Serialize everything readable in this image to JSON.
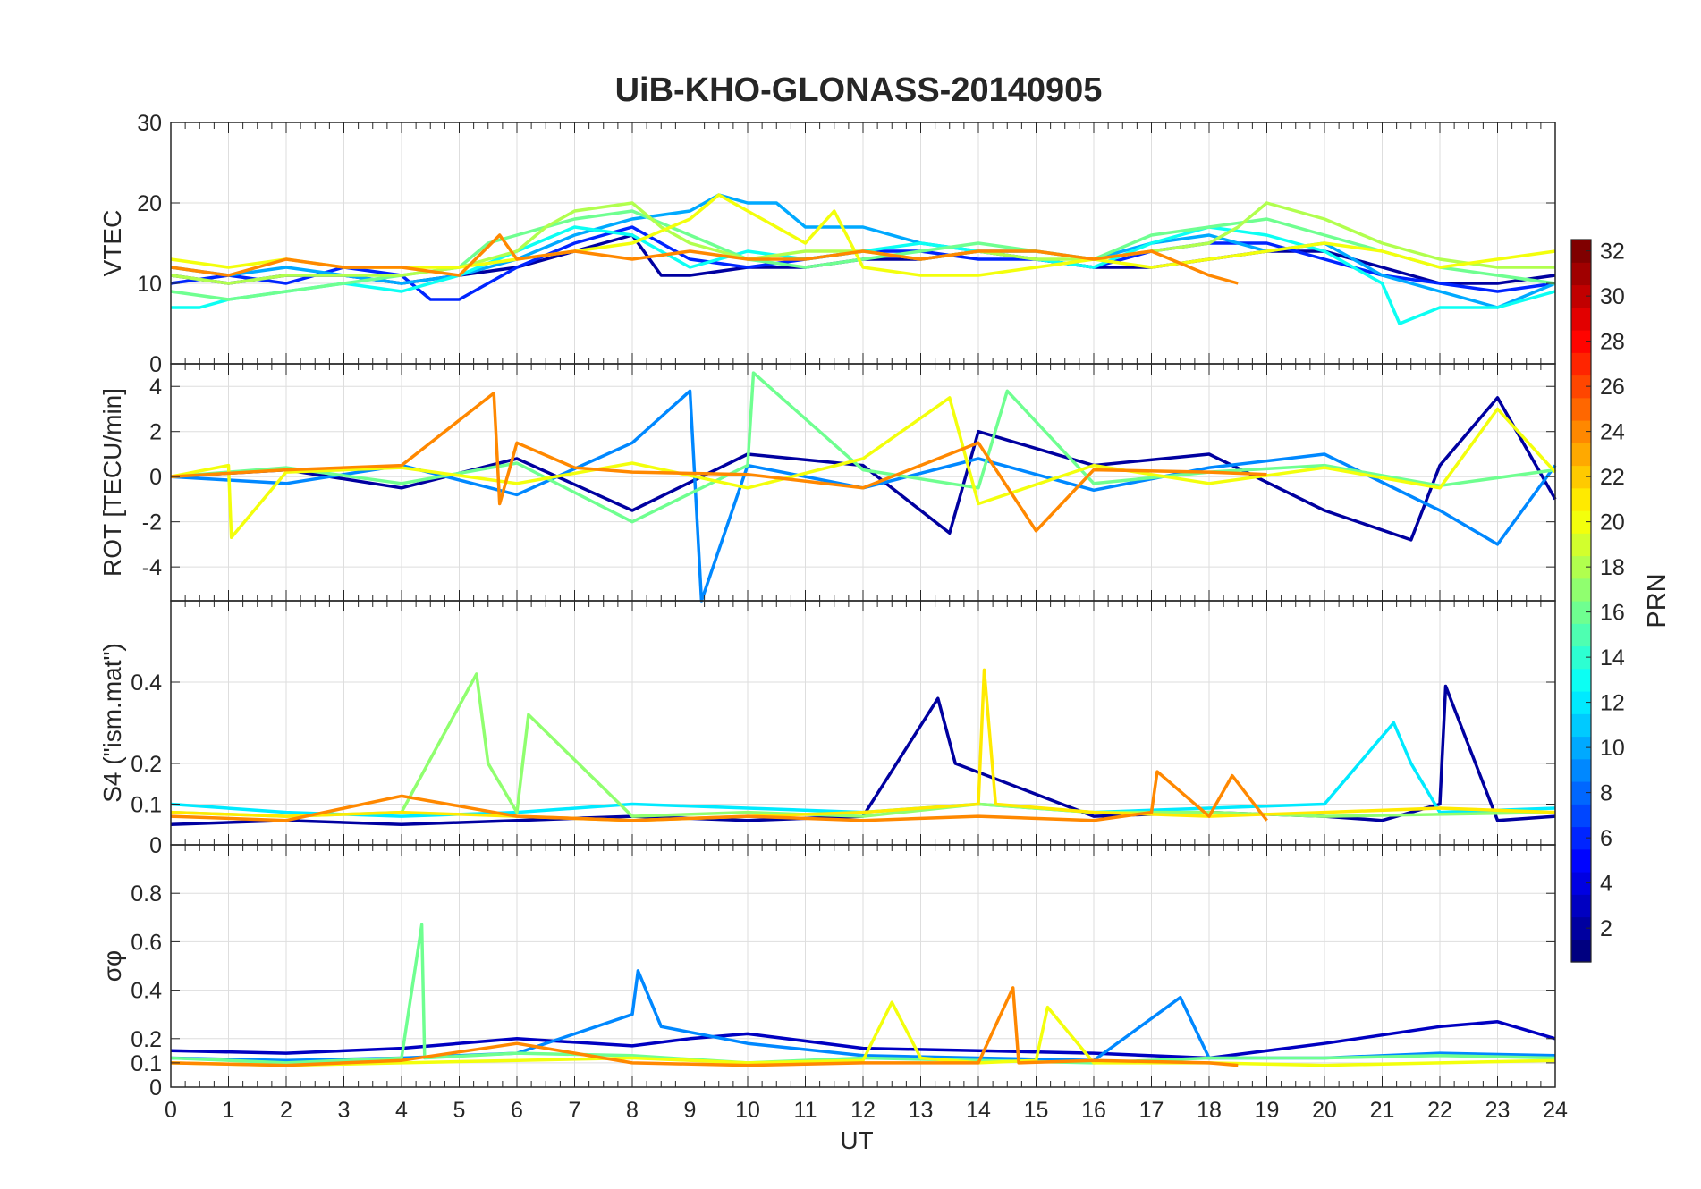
{
  "figure": {
    "title": "UiB-KHO-GLONASS-20140905",
    "xlabel": "UT",
    "colormap": "jet"
  },
  "chart_data": [
    {
      "type": "line",
      "id": "vtec",
      "ylabel": "VTEC",
      "xlim": [
        0,
        24
      ],
      "ylim": [
        0,
        30
      ],
      "yticks": [
        0,
        10,
        20,
        30
      ],
      "grid": true,
      "series_style": "many PRN traces colored by PRN",
      "series": [
        {
          "prn": 2,
          "x": [
            0,
            1,
            2,
            3,
            4,
            5,
            6,
            7,
            8,
            8.5,
            9,
            10,
            11,
            12,
            13,
            14,
            15,
            16,
            17,
            18,
            19,
            20,
            21,
            22,
            23,
            24
          ],
          "y": [
            11,
            10,
            11,
            11,
            10,
            11,
            12,
            14,
            16,
            11,
            11,
            12,
            12,
            13,
            13,
            14,
            13,
            12,
            12,
            13,
            14,
            14,
            12,
            10,
            10,
            11
          ]
        },
        {
          "prn": 6,
          "x": [
            0,
            1,
            2,
            3,
            4,
            4.5,
            5,
            6,
            7,
            8,
            9,
            10,
            11,
            12,
            13,
            14,
            15,
            16,
            17,
            18,
            19,
            20,
            21,
            22,
            23,
            24
          ],
          "y": [
            10,
            11,
            10,
            12,
            11,
            8,
            8,
            12,
            15,
            17,
            13,
            12,
            13,
            14,
            14,
            13,
            13,
            12,
            14,
            15,
            15,
            13,
            11,
            10,
            9,
            10
          ]
        },
        {
          "prn": 10,
          "x": [
            0,
            1,
            2,
            3,
            4,
            5,
            6,
            7,
            8,
            9,
            9.5,
            10,
            10.5,
            11,
            12,
            13,
            14,
            15,
            16,
            17,
            18,
            19,
            20,
            21,
            22,
            23,
            24
          ],
          "y": [
            12,
            11,
            12,
            11,
            10,
            11,
            13,
            16,
            18,
            19,
            21,
            20,
            20,
            17,
            17,
            15,
            14,
            14,
            13,
            15,
            16,
            14,
            15,
            11,
            9,
            7,
            10
          ]
        },
        {
          "prn": 13,
          "x": [
            0,
            0.5,
            1,
            2,
            3,
            4,
            5,
            6,
            7,
            8,
            9,
            10,
            11,
            12,
            13,
            14,
            15,
            16,
            17,
            18,
            19,
            20,
            21,
            21.3,
            22,
            23,
            24
          ],
          "y": [
            7,
            7,
            8,
            9,
            10,
            9,
            11,
            14,
            17,
            16,
            12,
            14,
            13,
            14,
            15,
            14,
            13,
            12,
            15,
            17,
            16,
            14,
            10,
            5,
            7,
            7,
            9
          ]
        },
        {
          "prn": 16,
          "x": [
            0,
            1,
            2,
            3,
            4,
            5,
            5.5,
            6,
            7,
            8,
            9,
            10,
            11,
            12,
            13,
            14,
            15,
            16,
            17,
            18,
            19,
            20,
            21,
            22,
            23,
            24
          ],
          "y": [
            9,
            8,
            9,
            10,
            11,
            12,
            15,
            16,
            18,
            19,
            16,
            13,
            12,
            13,
            14,
            15,
            14,
            13,
            16,
            17,
            18,
            16,
            14,
            12,
            11,
            10
          ]
        },
        {
          "prn": 18,
          "x": [
            0,
            1,
            2,
            3,
            4,
            5,
            6,
            6.5,
            7,
            8,
            8.5,
            9,
            10,
            11,
            12,
            13,
            14,
            15,
            16,
            17,
            18,
            18.5,
            19,
            20,
            21,
            22,
            23,
            24
          ],
          "y": [
            11,
            10,
            11,
            11,
            11,
            12,
            14,
            17,
            19,
            20,
            17,
            15,
            13,
            14,
            14,
            13,
            14,
            13,
            13,
            14,
            15,
            17,
            20,
            18,
            15,
            13,
            12,
            12
          ]
        },
        {
          "prn": 20,
          "x": [
            0,
            1,
            2,
            3,
            4,
            5,
            6,
            7,
            8,
            9,
            9.5,
            10,
            11,
            11.5,
            12,
            13,
            14,
            15,
            16,
            17,
            18,
            19,
            20,
            21,
            22,
            23,
            24
          ],
          "y": [
            13,
            12,
            13,
            12,
            12,
            12,
            13,
            14,
            15,
            18,
            21,
            19,
            15,
            19,
            12,
            11,
            11,
            12,
            13,
            12,
            13,
            14,
            15,
            14,
            12,
            13,
            14
          ]
        },
        {
          "prn": 24,
          "x": [
            0,
            1,
            2,
            3,
            4,
            5,
            5.7,
            6,
            7,
            8,
            9,
            10,
            11,
            12,
            13,
            14,
            15,
            16,
            17,
            18,
            18.5
          ],
          "y": [
            12,
            11,
            13,
            12,
            12,
            11,
            16,
            13,
            14,
            13,
            14,
            13,
            13,
            14,
            13,
            14,
            14,
            13,
            14,
            11,
            10
          ]
        }
      ]
    },
    {
      "type": "line",
      "id": "rot",
      "ylabel": "ROT [TECU/min]",
      "xlim": [
        0,
        24
      ],
      "ylim": [
        -5.5,
        5
      ],
      "yticks": [
        -4,
        -2,
        0,
        2,
        4
      ],
      "grid": true,
      "series": [
        {
          "prn": 2,
          "x": [
            0,
            2,
            4,
            6,
            8,
            10,
            12,
            13.5,
            14,
            16,
            18,
            20,
            21.5,
            22,
            23,
            24
          ],
          "y": [
            0,
            0.3,
            -0.5,
            0.8,
            -1.5,
            1,
            0.5,
            -2.5,
            2,
            0.5,
            1,
            -1.5,
            -2.8,
            0.5,
            3.5,
            -1
          ]
        },
        {
          "prn": 9,
          "x": [
            0,
            2,
            4,
            6,
            8,
            9,
            9.2,
            10,
            12,
            14,
            16,
            18,
            20,
            22,
            23,
            24
          ],
          "y": [
            0,
            -0.3,
            0.5,
            -0.8,
            1.5,
            3.8,
            -5.5,
            0.5,
            -0.5,
            0.8,
            -0.6,
            0.4,
            1,
            -1.5,
            -3,
            0.5
          ]
        },
        {
          "prn": 16,
          "x": [
            0,
            2,
            4,
            6,
            8,
            10,
            10.1,
            12,
            14,
            14.5,
            16,
            18,
            20,
            22,
            24
          ],
          "y": [
            0,
            0.4,
            -0.3,
            0.6,
            -2,
            0.5,
            4.6,
            0.3,
            -0.5,
            3.8,
            -0.3,
            0.2,
            0.5,
            -0.4,
            0.3
          ]
        },
        {
          "prn": 20,
          "x": [
            0,
            1,
            1.05,
            2,
            4,
            6,
            8,
            10,
            12,
            13.5,
            14,
            16,
            18,
            20,
            22,
            23,
            24
          ],
          "y": [
            0,
            0.5,
            -2.7,
            0.2,
            0.4,
            -0.3,
            0.6,
            -0.5,
            0.8,
            3.5,
            -1.2,
            0.5,
            -0.3,
            0.4,
            -0.5,
            3,
            0.2
          ]
        },
        {
          "prn": 24,
          "x": [
            0,
            2,
            4,
            5.6,
            5.7,
            6,
            7,
            8,
            10,
            12,
            14,
            15,
            16,
            18,
            19
          ],
          "y": [
            0,
            0.3,
            0.5,
            3.7,
            -1.2,
            1.5,
            0.4,
            0.2,
            0.1,
            -0.5,
            1.5,
            -2.4,
            0.3,
            0.2,
            0.1
          ]
        }
      ]
    },
    {
      "type": "line",
      "id": "s4",
      "ylabel": "S4 (\"ism.mat\")",
      "xlim": [
        0,
        24
      ],
      "ylim": [
        0,
        0.6
      ],
      "yticks": [
        0,
        0.1,
        0.2,
        0.4
      ],
      "grid": true,
      "series": [
        {
          "prn": 2,
          "x": [
            0,
            2,
            4,
            6,
            8,
            10,
            12,
            13.3,
            13.6,
            16,
            18,
            20,
            21,
            22,
            22.1,
            23,
            24
          ],
          "y": [
            0.05,
            0.06,
            0.05,
            0.06,
            0.07,
            0.06,
            0.07,
            0.36,
            0.2,
            0.07,
            0.08,
            0.07,
            0.06,
            0.1,
            0.39,
            0.06,
            0.07
          ]
        },
        {
          "prn": 12,
          "x": [
            0,
            2,
            4,
            6,
            8,
            10,
            12,
            14,
            16,
            18,
            20,
            21.2,
            21.5,
            22,
            24
          ],
          "y": [
            0.1,
            0.08,
            0.07,
            0.08,
            0.1,
            0.09,
            0.08,
            0.1,
            0.08,
            0.09,
            0.1,
            0.3,
            0.2,
            0.08,
            0.09
          ]
        },
        {
          "prn": 17,
          "x": [
            0,
            2,
            4,
            5.3,
            5.5,
            6,
            6.2,
            8,
            10,
            12,
            14,
            16,
            18,
            20,
            24
          ],
          "y": [
            0.08,
            0.07,
            0.08,
            0.42,
            0.2,
            0.08,
            0.32,
            0.07,
            0.08,
            0.07,
            0.1,
            0.08,
            0.08,
            0.07,
            0.08
          ]
        },
        {
          "prn": 21,
          "x": [
            0,
            2,
            4,
            6,
            8,
            10,
            12,
            14,
            14.1,
            14.3,
            16,
            18,
            20,
            22,
            24
          ],
          "y": [
            0.08,
            0.07,
            0.08,
            0.07,
            0.06,
            0.07,
            0.08,
            0.1,
            0.43,
            0.1,
            0.08,
            0.07,
            0.08,
            0.09,
            0.08
          ]
        },
        {
          "prn": 24,
          "x": [
            0,
            2,
            4,
            6,
            8,
            10,
            12,
            14,
            16,
            17,
            17.1,
            18,
            18.4,
            19
          ],
          "y": [
            0.07,
            0.06,
            0.12,
            0.07,
            0.06,
            0.07,
            0.06,
            0.07,
            0.06,
            0.08,
            0.18,
            0.07,
            0.17,
            0.06
          ]
        }
      ]
    },
    {
      "type": "line",
      "id": "sigma_phi",
      "ylabel": "σφ",
      "xlim": [
        0,
        24
      ],
      "ylim": [
        0,
        1
      ],
      "yticks": [
        0,
        0.1,
        0.2,
        0.4,
        0.6,
        0.8
      ],
      "xticks": [
        0,
        1,
        2,
        3,
        4,
        5,
        6,
        7,
        8,
        9,
        10,
        11,
        12,
        13,
        14,
        15,
        16,
        17,
        18,
        19,
        20,
        21,
        22,
        23,
        24
      ],
      "grid": true,
      "series": [
        {
          "prn": 3,
          "x": [
            0,
            2,
            4,
            6,
            8,
            9,
            10,
            12,
            14,
            16,
            18,
            20,
            22,
            23,
            24
          ],
          "y": [
            0.15,
            0.14,
            0.16,
            0.2,
            0.17,
            0.2,
            0.22,
            0.16,
            0.15,
            0.14,
            0.12,
            0.18,
            0.25,
            0.27,
            0.2
          ]
        },
        {
          "prn": 9,
          "x": [
            0,
            2,
            4,
            6,
            8,
            8.1,
            8.5,
            10,
            12,
            14,
            16,
            17.5,
            18,
            20,
            22,
            24
          ],
          "y": [
            0.12,
            0.11,
            0.12,
            0.14,
            0.3,
            0.48,
            0.25,
            0.18,
            0.13,
            0.12,
            0.11,
            0.37,
            0.12,
            0.12,
            0.14,
            0.13
          ]
        },
        {
          "prn": 16,
          "x": [
            0,
            2,
            4,
            4.35,
            4.4,
            6,
            8,
            10,
            12,
            14,
            16,
            18,
            20,
            22,
            24
          ],
          "y": [
            0.12,
            0.1,
            0.12,
            0.67,
            0.12,
            0.14,
            0.13,
            0.1,
            0.12,
            0.11,
            0.1,
            0.12,
            0.12,
            0.13,
            0.12
          ]
        },
        {
          "prn": 20,
          "x": [
            0,
            2,
            4,
            6,
            8,
            10,
            12,
            12.5,
            13,
            14,
            15,
            15.2,
            16,
            18,
            20,
            22,
            24
          ],
          "y": [
            0.1,
            0.09,
            0.1,
            0.11,
            0.12,
            0.1,
            0.11,
            0.35,
            0.12,
            0.1,
            0.11,
            0.33,
            0.1,
            0.1,
            0.09,
            0.1,
            0.11
          ]
        },
        {
          "prn": 24,
          "x": [
            0,
            2,
            4,
            6,
            8,
            10,
            12,
            14,
            14.6,
            14.7,
            16,
            18,
            18.5
          ],
          "y": [
            0.1,
            0.09,
            0.11,
            0.18,
            0.1,
            0.09,
            0.1,
            0.1,
            0.41,
            0.1,
            0.11,
            0.1,
            0.09
          ]
        }
      ]
    }
  ],
  "colorbar": {
    "label": "PRN",
    "min": 1,
    "max": 32,
    "ticks": [
      2,
      4,
      6,
      8,
      10,
      12,
      14,
      16,
      18,
      20,
      22,
      24,
      26,
      28,
      30,
      32
    ]
  }
}
